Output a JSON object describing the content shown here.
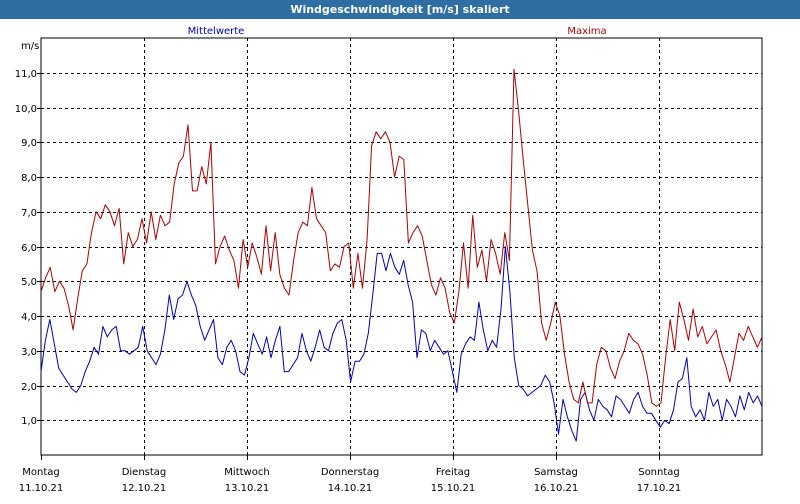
{
  "title": "Windgeschwindigkeit [m/s] skaliert",
  "chart_data": {
    "type": "line",
    "title": "Windgeschwindigkeit [m/s] skaliert",
    "ylabel": "m/s",
    "xlabel": "",
    "ylim": [
      0,
      12
    ],
    "y_ticks": [
      "1,0",
      "2,0",
      "3,0",
      "4,0",
      "5,0",
      "6,0",
      "7,0",
      "8,0",
      "9,0",
      "10,0",
      "11,0"
    ],
    "x_ticks": [
      {
        "day": "Montag",
        "date": "11.10.21"
      },
      {
        "day": "Dienstag",
        "date": "12.10.21"
      },
      {
        "day": "Mittwoch",
        "date": "13.10.21"
      },
      {
        "day": "Donnerstag",
        "date": "14.10.21"
      },
      {
        "day": "Freitag",
        "date": "15.10.21"
      },
      {
        "day": "Samstag",
        "date": "16.10.21"
      },
      {
        "day": "Sonntag",
        "date": "17.10.21"
      }
    ],
    "grid": true,
    "series": [
      {
        "name": "Mittelwerte",
        "color": "#0000c0",
        "values": [
          2.4,
          3.3,
          3.9,
          3.2,
          2.5,
          2.3,
          2.1,
          1.9,
          1.8,
          2.0,
          2.4,
          2.7,
          3.1,
          2.9,
          3.7,
          3.4,
          3.6,
          3.7,
          3.0,
          3.0,
          2.9,
          3.0,
          3.1,
          3.7,
          3.0,
          2.8,
          2.6,
          2.9,
          3.6,
          4.6,
          3.9,
          4.5,
          4.6,
          5.0,
          4.6,
          4.3,
          3.7,
          3.3,
          3.6,
          3.9,
          2.8,
          2.6,
          3.1,
          3.3,
          3.0,
          2.4,
          2.3,
          2.8,
          3.5,
          3.2,
          2.9,
          3.4,
          2.8,
          3.3,
          3.7,
          2.4,
          2.4,
          2.6,
          2.8,
          3.5,
          3.0,
          2.7,
          3.1,
          3.6,
          3.1,
          3.0,
          3.5,
          3.8,
          3.9,
          3.3,
          2.1,
          2.7,
          2.7,
          2.9,
          3.5,
          4.6,
          5.8,
          5.8,
          5.3,
          5.8,
          5.4,
          5.2,
          5.6,
          4.9,
          4.4,
          2.8,
          3.6,
          3.5,
          3.0,
          3.3,
          3.1,
          2.9,
          3.0,
          2.4,
          1.8,
          2.9,
          3.2,
          3.4,
          3.3,
          4.4,
          3.6,
          3.0,
          3.3,
          3.1,
          4.2,
          6.0,
          4.7,
          2.8,
          2.0,
          1.9,
          1.7,
          1.8,
          1.9,
          2.0,
          2.3,
          2.1,
          1.5,
          0.6,
          1.6,
          1.1,
          0.7,
          0.4,
          1.6,
          1.8,
          1.3,
          1.0,
          1.6,
          1.4,
          1.3,
          1.1,
          1.7,
          1.6,
          1.4,
          1.2,
          1.6,
          1.8,
          1.4,
          1.2,
          1.2,
          1.0,
          0.8,
          1.0,
          0.9,
          1.3,
          2.1,
          2.2,
          2.8,
          1.4,
          1.1,
          1.3,
          1.0,
          1.8,
          1.4,
          1.6,
          1.0,
          1.6,
          1.4,
          1.1,
          1.7,
          1.3,
          1.8,
          1.5,
          1.7,
          1.4
        ],
        "name_visible": true
      },
      {
        "name": "Maxima",
        "color": "#b00000",
        "values": [
          4.7,
          5.1,
          5.4,
          4.7,
          5.0,
          4.8,
          4.3,
          3.6,
          4.5,
          5.3,
          5.5,
          6.4,
          7.0,
          6.8,
          7.2,
          7.0,
          6.6,
          7.1,
          5.5,
          6.4,
          6.0,
          6.2,
          6.8,
          6.1,
          7.0,
          6.2,
          6.9,
          6.6,
          6.7,
          7.8,
          8.4,
          8.6,
          9.5,
          7.6,
          7.6,
          8.3,
          7.8,
          9.0,
          5.5,
          6.0,
          6.3,
          5.9,
          5.6,
          4.8,
          6.2,
          5.4,
          6.1,
          5.7,
          5.2,
          6.6,
          5.3,
          6.4,
          5.2,
          4.8,
          4.6,
          5.6,
          6.4,
          6.7,
          6.6,
          7.7,
          6.8,
          6.6,
          6.4,
          5.3,
          5.5,
          5.4,
          6.0,
          6.1,
          4.8,
          5.8,
          4.8,
          6.2,
          8.9,
          9.3,
          9.1,
          9.3,
          9.0,
          8.0,
          8.6,
          8.5,
          6.1,
          6.4,
          6.6,
          6.3,
          5.6,
          4.9,
          4.6,
          5.1,
          4.8,
          4.1,
          3.8,
          4.7,
          6.1,
          4.8,
          6.9,
          5.4,
          5.9,
          5.0,
          6.2,
          5.8,
          5.2,
          6.4,
          5.6,
          11.1,
          9.9,
          8.5,
          7.2,
          5.9,
          5.3,
          3.8,
          3.3,
          3.8,
          4.4,
          4.0,
          2.9,
          2.1,
          1.6,
          1.5,
          2.1,
          1.5,
          1.5,
          2.6,
          3.1,
          3.0,
          2.5,
          2.2,
          2.7,
          3.0,
          3.5,
          3.3,
          3.2,
          2.9,
          2.3,
          1.5,
          1.4,
          1.5,
          2.8,
          3.9,
          3.0,
          4.4,
          3.9,
          3.3,
          4.2,
          3.4,
          3.7,
          3.2,
          3.4,
          3.6,
          3.0,
          2.6,
          2.1,
          2.8,
          3.5,
          3.3,
          3.7,
          3.4,
          3.1,
          3.4
        ],
        "name_visible": true
      }
    ]
  }
}
